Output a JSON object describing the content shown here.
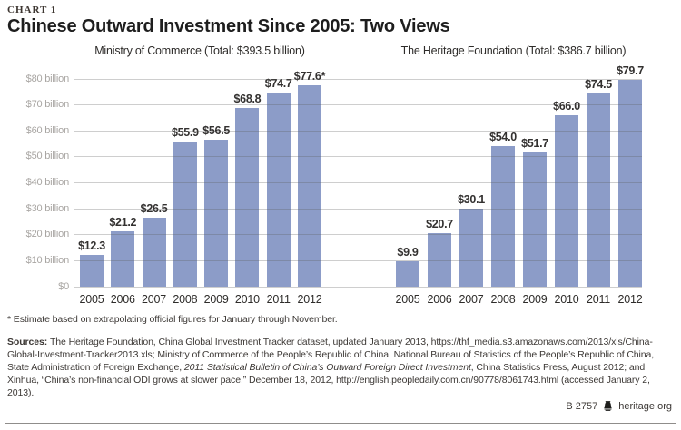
{
  "header": {
    "kicker": "CHART 1",
    "title": "Chinese Outward Investment Since 2005: Two Views"
  },
  "chart_data": {
    "type": "bar",
    "categories": [
      "2005",
      "2006",
      "2007",
      "2008",
      "2009",
      "2010",
      "2011",
      "2012"
    ],
    "ylim": [
      0,
      80
    ],
    "ytick_step": 10,
    "ytick_labels": [
      "$0",
      "$10 billion",
      "$20 billion",
      "$30 billion",
      "$40 billion",
      "$50 billion",
      "$60 billion",
      "$70 billion",
      "$80 billion"
    ],
    "grid": true,
    "bar_color": "#8c9cc8",
    "panels": [
      {
        "title": "Ministry of Commerce (Total: $393.5 billion)",
        "series": [
          {
            "name": "Ministry of Commerce",
            "values": [
              12.3,
              21.2,
              26.5,
              55.9,
              56.5,
              68.8,
              74.7,
              77.6
            ]
          }
        ],
        "value_labels": [
          "$12.3",
          "$21.2",
          "$26.5",
          "$55.9",
          "$56.5",
          "$68.8",
          "$74.7",
          "$77.6*"
        ]
      },
      {
        "title": "The Heritage Foundation (Total: $386.7 billion)",
        "series": [
          {
            "name": "The Heritage Foundation",
            "values": [
              9.9,
              20.7,
              30.1,
              54.0,
              51.7,
              66.0,
              74.5,
              79.7
            ]
          }
        ],
        "value_labels": [
          "$9.9",
          "$20.7",
          "$30.1",
          "$54.0",
          "$51.7",
          "$66.0",
          "$74.5",
          "$79.7"
        ]
      }
    ]
  },
  "footnote": "* Estimate based on extrapolating official figures for January through November.",
  "sources": {
    "segments": [
      {
        "text": "Sources: ",
        "bold": true
      },
      {
        "text": "The Heritage Foundation, China Global Investment Tracker dataset, updated January 2013, https://thf_media.s3.amazonaws.com/2013/xls/China-Global-Investment-Tracker2013.xls; Ministry of Commerce of the People’s Republic of China, National Bureau of Statistics of the People’s Republic of China, State Administration of Foreign Exchange, "
      },
      {
        "text": "2011 Statistical Bulletin of China’s Outward Foreign Direct Investment",
        "italic": true
      },
      {
        "text": ", China Statistics Press, August 2012; and Xinhua, “China’s non-financial ODI grows at slower pace,” December 18, 2012, http://english.peopledaily.com.cn/90778/8061743.html (accessed January 2, 2013)."
      }
    ]
  },
  "footer": {
    "chart_id": "B 2757",
    "site": "heritage.org"
  }
}
